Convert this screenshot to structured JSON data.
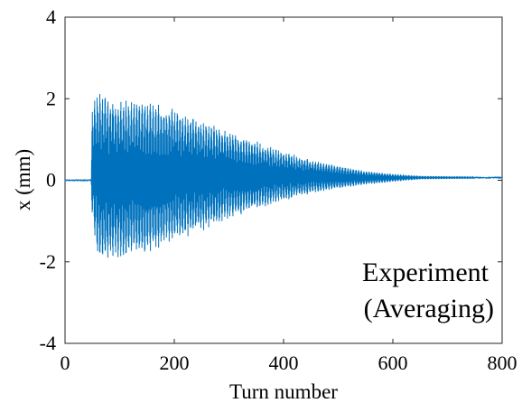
{
  "chart_data": {
    "type": "line",
    "title": "",
    "xlabel": "Turn number",
    "ylabel": "x (mm)",
    "xlim": [
      0,
      800
    ],
    "ylim": [
      -4,
      4
    ],
    "xticks": [
      "0",
      "200",
      "400",
      "600",
      "800"
    ],
    "yticks": [
      "-4",
      "-2",
      "0",
      "2",
      "4"
    ],
    "grid": false,
    "legend": "none",
    "series_color": "#0072BD",
    "annotation": [
      "Experiment",
      "(Averaging)"
    ],
    "envelope": {
      "turns": [
        0,
        48,
        50,
        60,
        100,
        150,
        200,
        250,
        300,
        350,
        400,
        450,
        500,
        550,
        600,
        650,
        700,
        800
      ],
      "upper_mm": [
        0.0,
        0.0,
        1.85,
        2.15,
        2.0,
        1.95,
        1.75,
        1.5,
        1.2,
        0.95,
        0.7,
        0.5,
        0.35,
        0.22,
        0.15,
        0.1,
        0.09,
        0.08
      ],
      "lower_mm": [
        0.0,
        0.0,
        -1.05,
        -1.95,
        -1.9,
        -1.8,
        -1.5,
        -1.25,
        -0.95,
        -0.7,
        -0.5,
        -0.32,
        -0.2,
        -0.1,
        -0.03,
        0.03,
        0.04,
        0.05
      ]
    }
  }
}
